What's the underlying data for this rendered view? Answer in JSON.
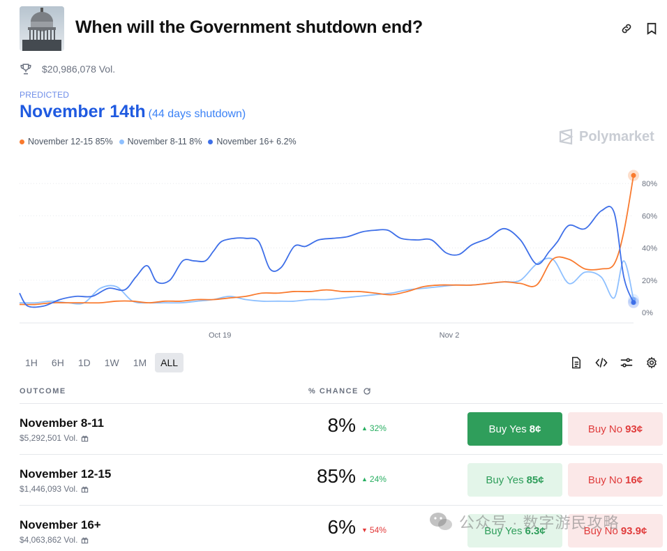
{
  "header": {
    "title": "When will the Government shutdown end?"
  },
  "volume": "$20,986,078 Vol.",
  "predicted": {
    "label": "PREDICTED",
    "value": "November 14th",
    "sub": "(44 days shutdown)"
  },
  "legend": [
    {
      "label": "November 12-15 85%",
      "color": "#f97a2e"
    },
    {
      "label": "November 8-11 8%",
      "color": "#8ec0ff"
    },
    {
      "label": "November 16+ 6.2%",
      "color": "#3e6fe8"
    }
  ],
  "brand": "Polymarket",
  "range_tabs": [
    "1H",
    "6H",
    "1D",
    "1W",
    "1M",
    "ALL"
  ],
  "active_range": "ALL",
  "table": {
    "col_outcome": "OUTCOME",
    "col_chance": "% CHANCE",
    "rows": [
      {
        "name": "November 8-11",
        "volume": "$5,292,501 Vol.",
        "pct": "8%",
        "delta": "32%",
        "dir": "up",
        "yes_label": "Buy Yes",
        "yes_price": "8¢",
        "no_label": "Buy No",
        "no_price": "93¢"
      },
      {
        "name": "November 12-15",
        "volume": "$1,446,093 Vol.",
        "pct": "85%",
        "delta": "24%",
        "dir": "up",
        "yes_label": "Buy Yes",
        "yes_price": "85¢",
        "no_label": "Buy No",
        "no_price": "16¢"
      },
      {
        "name": "November 16+",
        "volume": "$4,063,862 Vol.",
        "pct": "6%",
        "delta": "54%",
        "dir": "down",
        "yes_label": "Buy Yes",
        "yes_price": "6.3¢",
        "no_label": "Buy No",
        "no_price": "93.9¢"
      }
    ]
  },
  "watermark": "公众号 · 数字游民攻略",
  "chart_data": {
    "type": "line",
    "x_ticks": [
      "Oct 19",
      "Nov 2"
    ],
    "y_ticks": [
      "0%",
      "20%",
      "40%",
      "60%",
      "80%"
    ],
    "ylim": [
      0,
      90
    ],
    "xlim": [
      0,
      38
    ],
    "series": [
      {
        "name": "November 16+",
        "color": "#3e6fe8",
        "x": [
          0,
          0.5,
          1.5,
          2.5,
          3.5,
          4.5,
          5.5,
          6.5,
          7.2,
          7.9,
          8.5,
          9.3,
          10.1,
          10.8,
          11.5,
          12.0,
          12.5,
          13.3,
          14.0,
          14.8,
          15.5,
          16.2,
          17.0,
          17.7,
          18.5,
          19.4,
          20.3,
          21.2,
          22.0,
          22.8,
          23.6,
          24.6,
          25.5,
          26.4,
          27.2,
          28.0,
          29.0,
          30.0,
          31.0,
          32.0,
          32.8,
          33.3,
          34.0,
          35.0,
          36.0,
          36.8,
          37.4,
          38.0
        ],
        "y": [
          12,
          4,
          4,
          8,
          10,
          10,
          15,
          14,
          22,
          29,
          19,
          20,
          32,
          32,
          32,
          38,
          44,
          46,
          46,
          44,
          27,
          28,
          41,
          41,
          45,
          46,
          47,
          50,
          51,
          51,
          46,
          45,
          45,
          37,
          36,
          42,
          46,
          52,
          45,
          30,
          38,
          44,
          54,
          52,
          63,
          62,
          22,
          6.2
        ]
      },
      {
        "name": "November 12-15",
        "color": "#f97a2e",
        "x": [
          0,
          1,
          2,
          3,
          4,
          5,
          6,
          7,
          8,
          9,
          10,
          11,
          12,
          13,
          14,
          15,
          16,
          17,
          18,
          19,
          20,
          21,
          22,
          23,
          24,
          25,
          26,
          27,
          28,
          29,
          30,
          31,
          32,
          33,
          34,
          35,
          36,
          36.8,
          37.4,
          38.0
        ],
        "y": [
          5,
          5,
          6,
          6,
          6,
          6,
          7,
          7,
          6,
          7,
          7,
          8,
          8,
          9,
          10,
          12,
          12,
          13,
          13,
          14,
          13,
          13,
          12,
          11,
          13,
          16,
          17,
          17,
          17,
          18,
          19,
          18,
          17,
          33,
          33,
          27,
          27,
          30,
          50,
          85
        ]
      },
      {
        "name": "November 8-11",
        "color": "#8ec0ff",
        "x": [
          0,
          1,
          2,
          3,
          4,
          5,
          6,
          7,
          8,
          9,
          10,
          11,
          12,
          13,
          14,
          15,
          16,
          17,
          18,
          19,
          20,
          21,
          22,
          23,
          24,
          25,
          26,
          27,
          28,
          29,
          30,
          31,
          32,
          33,
          34,
          35,
          36,
          36.8,
          37.4,
          38.0
        ],
        "y": [
          6,
          6,
          7,
          6,
          6,
          15,
          16,
          7,
          6,
          6,
          6,
          7,
          8,
          10,
          8,
          7,
          7,
          7,
          8,
          8,
          9,
          10,
          11,
          12,
          14,
          15,
          16,
          17,
          17,
          18,
          19,
          20,
          30,
          33,
          18,
          25,
          22,
          9,
          32,
          8
        ]
      }
    ]
  }
}
